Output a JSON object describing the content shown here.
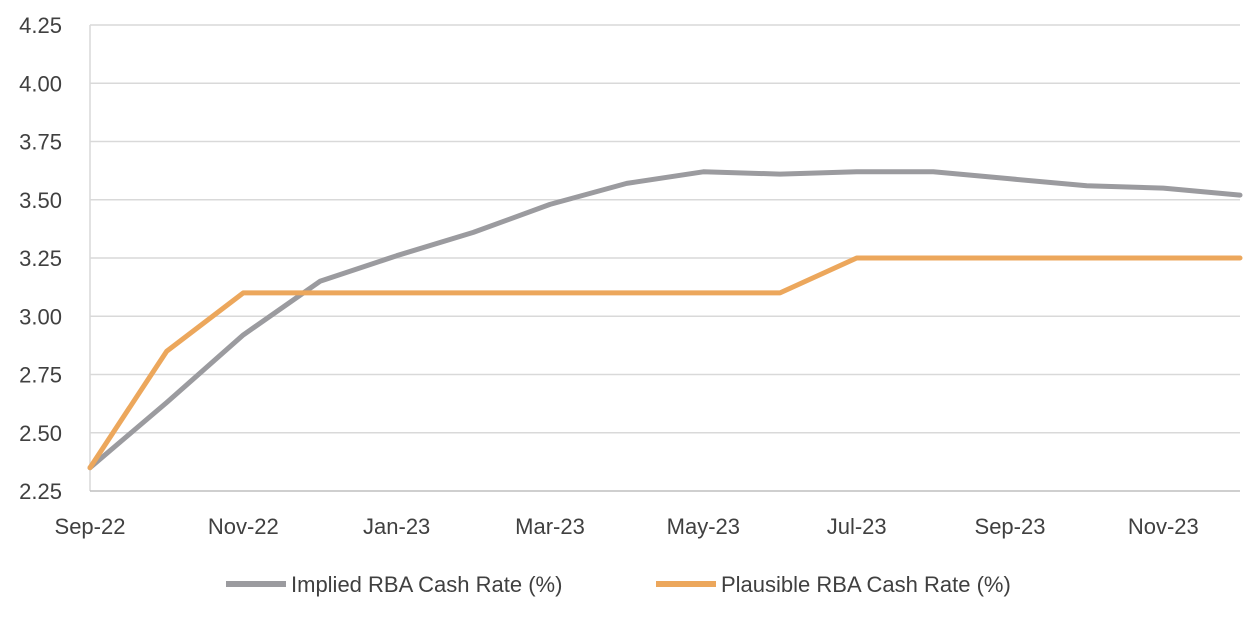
{
  "chart_data": {
    "type": "line",
    "x": [
      "Sep-22",
      "Oct-22",
      "Nov-22",
      "Dec-22",
      "Jan-23",
      "Feb-23",
      "Mar-23",
      "Apr-23",
      "May-23",
      "Jun-23",
      "Jul-23",
      "Aug-23",
      "Sep-23",
      "Oct-23",
      "Nov-23",
      "Dec-23"
    ],
    "x_tick_labels": [
      "Sep-22",
      "Nov-22",
      "Jan-23",
      "Mar-23",
      "May-23",
      "Jul-23",
      "Sep-23",
      "Nov-23"
    ],
    "y_tick_labels": [
      "2.25",
      "2.50",
      "2.75",
      "3.00",
      "3.25",
      "3.50",
      "3.75",
      "4.00",
      "4.25"
    ],
    "ylim": [
      2.25,
      4.25
    ],
    "grid": "horizontal",
    "legend_position": "bottom",
    "series": [
      {
        "name": "Implied RBA Cash Rate (%)",
        "color": "#9b9b9f",
        "values": [
          2.35,
          2.63,
          2.92,
          3.15,
          3.26,
          3.36,
          3.48,
          3.57,
          3.62,
          3.61,
          3.62,
          3.62,
          3.59,
          3.56,
          3.55,
          3.52
        ]
      },
      {
        "name": "Plausible RBA Cash Rate (%)",
        "color": "#eca75c",
        "values": [
          2.35,
          2.85,
          3.1,
          3.1,
          3.1,
          3.1,
          3.1,
          3.1,
          3.1,
          3.1,
          3.25,
          3.25,
          3.25,
          3.25,
          3.25,
          3.25
        ]
      }
    ]
  }
}
